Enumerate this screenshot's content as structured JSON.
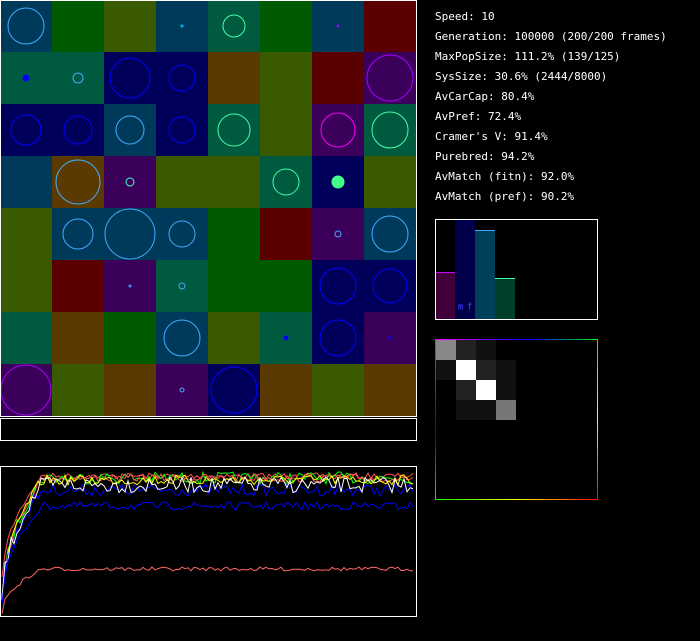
{
  "stats": [
    "Speed: 10",
    "Generation: 100000 (200/200 frames)",
    "MaxPopSize: 111.2% (139/125)",
    "SysSize: 30.6% (2444/8000)",
    "AvCarCap: 80.4%",
    "AvPref: 72.4%",
    "Cramer's V: 91.4%",
    "Purebred: 94.2%",
    "AvMatch (fitn): 92.0%",
    "AvMatch (pref): 90.2%"
  ],
  "histogram_labels": [
    "m",
    "f"
  ]
}
